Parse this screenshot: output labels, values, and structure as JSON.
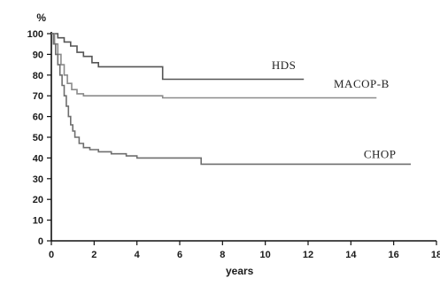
{
  "chart_data": {
    "type": "line",
    "title": "",
    "xlabel": "years",
    "ylabel": "%",
    "xlim": [
      0,
      18
    ],
    "ylim": [
      0,
      100
    ],
    "x_ticks": [
      0,
      2,
      4,
      6,
      8,
      10,
      12,
      14,
      16,
      18
    ],
    "x_tick_labels": [
      "0",
      "2",
      "4",
      "6",
      "8",
      "10",
      "12",
      "14",
      "16",
      "18"
    ],
    "y_ticks": [
      0,
      10,
      20,
      30,
      40,
      50,
      60,
      70,
      80,
      90,
      100
    ],
    "y_tick_labels": [
      "0",
      "10",
      "20",
      "30",
      "40",
      "50",
      "60",
      "70",
      "80",
      "90",
      "100"
    ],
    "grid": false,
    "series": [
      {
        "name": "HDS",
        "color": "#555555",
        "points": [
          [
            0,
            100
          ],
          [
            0.3,
            100
          ],
          [
            0.3,
            98
          ],
          [
            0.6,
            98
          ],
          [
            0.6,
            96
          ],
          [
            0.9,
            96
          ],
          [
            0.9,
            94
          ],
          [
            1.2,
            94
          ],
          [
            1.2,
            91
          ],
          [
            1.5,
            91
          ],
          [
            1.5,
            89
          ],
          [
            1.9,
            89
          ],
          [
            1.9,
            86
          ],
          [
            2.2,
            86
          ],
          [
            2.2,
            84
          ],
          [
            5.2,
            84
          ],
          [
            5.2,
            78
          ],
          [
            11.8,
            78
          ]
        ]
      },
      {
        "name": "MACOP-B",
        "color": "#8a8a8a",
        "points": [
          [
            0,
            100
          ],
          [
            0.15,
            100
          ],
          [
            0.15,
            95
          ],
          [
            0.3,
            95
          ],
          [
            0.3,
            90
          ],
          [
            0.45,
            90
          ],
          [
            0.45,
            85
          ],
          [
            0.6,
            85
          ],
          [
            0.6,
            80
          ],
          [
            0.75,
            80
          ],
          [
            0.75,
            76
          ],
          [
            0.95,
            76
          ],
          [
            0.95,
            73
          ],
          [
            1.2,
            73
          ],
          [
            1.2,
            71
          ],
          [
            1.5,
            71
          ],
          [
            1.5,
            70
          ],
          [
            5.2,
            70
          ],
          [
            5.2,
            69
          ],
          [
            15.2,
            69
          ]
        ]
      },
      {
        "name": "CHOP",
        "color": "#6e6e6e",
        "points": [
          [
            0,
            100
          ],
          [
            0.1,
            100
          ],
          [
            0.1,
            95
          ],
          [
            0.2,
            95
          ],
          [
            0.2,
            90
          ],
          [
            0.3,
            90
          ],
          [
            0.3,
            85
          ],
          [
            0.4,
            85
          ],
          [
            0.4,
            80
          ],
          [
            0.5,
            80
          ],
          [
            0.5,
            75
          ],
          [
            0.6,
            75
          ],
          [
            0.6,
            70
          ],
          [
            0.7,
            70
          ],
          [
            0.7,
            65
          ],
          [
            0.8,
            65
          ],
          [
            0.8,
            60
          ],
          [
            0.9,
            60
          ],
          [
            0.9,
            56
          ],
          [
            1.0,
            56
          ],
          [
            1.0,
            53
          ],
          [
            1.1,
            53
          ],
          [
            1.1,
            50
          ],
          [
            1.3,
            50
          ],
          [
            1.3,
            47
          ],
          [
            1.5,
            47
          ],
          [
            1.5,
            45
          ],
          [
            1.8,
            45
          ],
          [
            1.8,
            44
          ],
          [
            2.2,
            44
          ],
          [
            2.2,
            43
          ],
          [
            2.8,
            43
          ],
          [
            2.8,
            42
          ],
          [
            3.5,
            42
          ],
          [
            3.5,
            41
          ],
          [
            4.0,
            41
          ],
          [
            4.0,
            40
          ],
          [
            7.0,
            40
          ],
          [
            7.0,
            37
          ],
          [
            16.8,
            37
          ]
        ]
      }
    ],
    "annotations": [
      {
        "text": "HDS",
        "x": 10.3,
        "y": 83
      },
      {
        "text": "MACOP-B",
        "x": 13.2,
        "y": 74
      },
      {
        "text": "CHOP",
        "x": 14.6,
        "y": 40
      }
    ]
  }
}
